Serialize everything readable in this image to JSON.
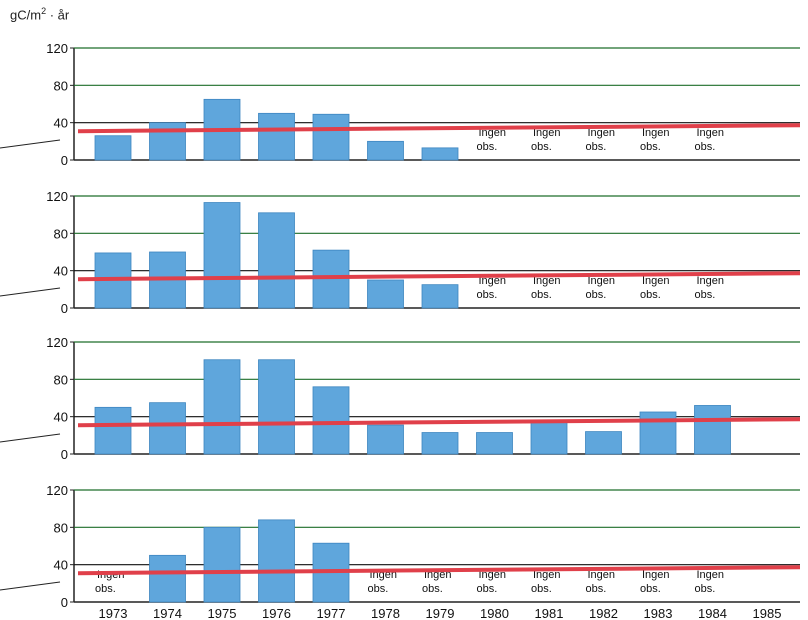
{
  "chart_data": {
    "type": "bar",
    "unit": {
      "base": "gC/m",
      "exp": "2",
      "rest": " · år"
    },
    "years": [
      "1973",
      "1974",
      "1975",
      "1976",
      "1977",
      "1978",
      "1979",
      "1980",
      "1981",
      "1982",
      "1983",
      "1984",
      "1985"
    ],
    "y_ticks": [
      "0",
      "40",
      "80",
      "120"
    ],
    "ylim": [
      0,
      120
    ],
    "no_obs_label": [
      "Ingen",
      "obs."
    ],
    "colors": {
      "bar": "#5fa6dc",
      "bar_edge": "#3d86c0",
      "reference_line": "#e0404a",
      "grid": "#1e6e2a"
    },
    "panels": [
      {
        "values": [
          26,
          40,
          65,
          50,
          49,
          20,
          13,
          null,
          null,
          null,
          null,
          null
        ],
        "reference": 33
      },
      {
        "values": [
          59,
          60,
          113,
          102,
          62,
          30,
          25,
          null,
          null,
          null,
          null,
          null
        ],
        "reference": 33
      },
      {
        "values": [
          50,
          55,
          101,
          101,
          72,
          31,
          23,
          23,
          36,
          24,
          45,
          52
        ],
        "reference": 33
      },
      {
        "values": [
          null,
          50,
          80,
          88,
          63,
          null,
          null,
          null,
          null,
          null,
          null,
          null
        ],
        "reference": 33
      }
    ]
  }
}
